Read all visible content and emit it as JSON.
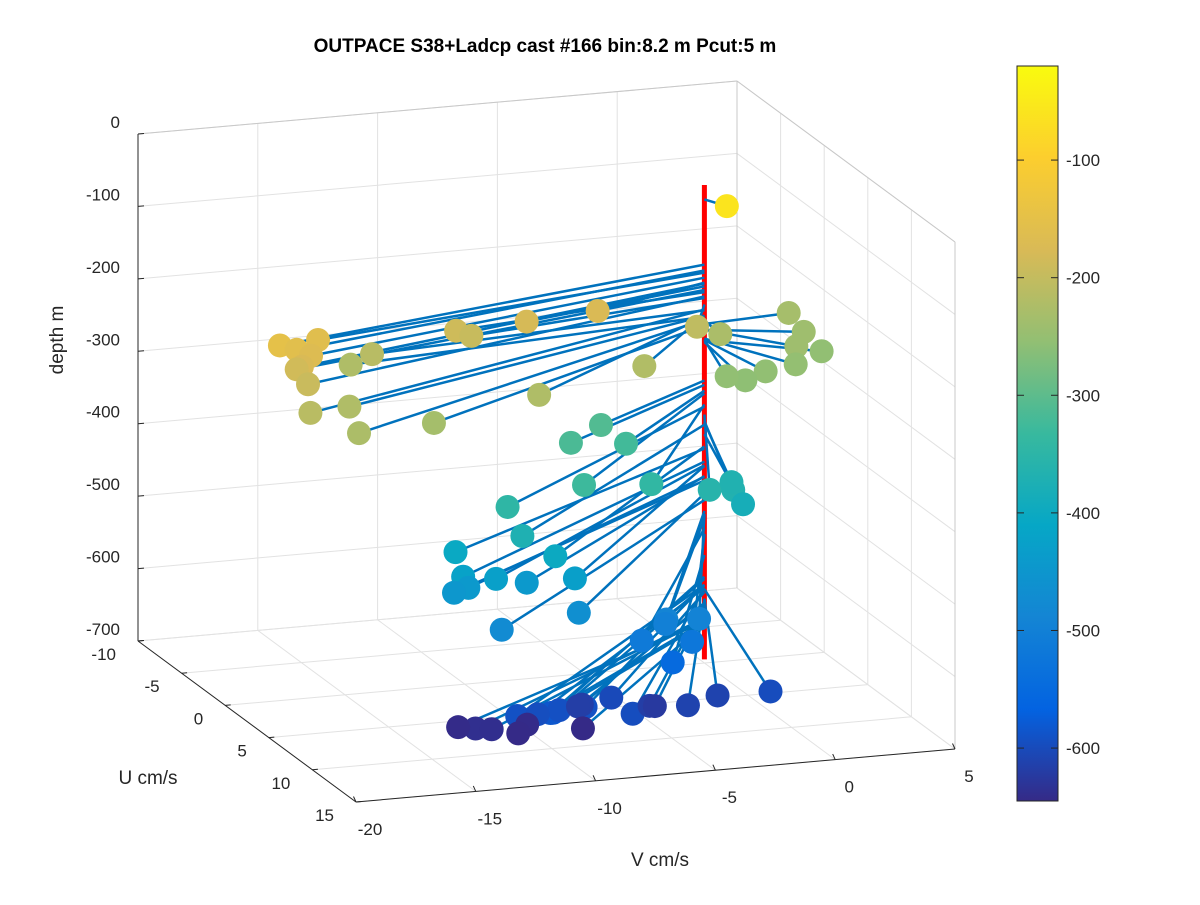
{
  "chart_data": {
    "type": "scatter",
    "projection": "3d",
    "title": "OUTPACE S38+Ladcp cast #166 bin:8.2 m  Pcut:5 m",
    "xlabel": "V cm/s",
    "ylabel": "U cm/s",
    "zlabel": "depth m",
    "xlim": [
      -20,
      5
    ],
    "ylim": [
      -10,
      15
    ],
    "zlim": [
      -700,
      0
    ],
    "xticks": [
      -20,
      -15,
      -10,
      -5,
      0,
      5
    ],
    "yticks": [
      -10,
      -5,
      0,
      5,
      10,
      15
    ],
    "zticks": [
      0,
      -100,
      -200,
      -300,
      -400,
      -500,
      -600,
      -700
    ],
    "xtick_labels": [
      "-20",
      "-15",
      "-10",
      "-5",
      "0",
      "5"
    ],
    "ytick_labels": [
      "-10",
      "-5",
      "0",
      "5",
      "10",
      "15"
    ],
    "ztick_labels": [
      "0",
      "-100",
      "-200",
      "-300",
      "-400",
      "-500",
      "-600",
      "-700"
    ],
    "grid": true,
    "colormap": "parula",
    "colorbar": {
      "ticks": [
        -100,
        -200,
        -300,
        -400,
        -500,
        -600
      ],
      "tick_labels": [
        "-100",
        "-200",
        "-300",
        "-400",
        "-500",
        "-600"
      ],
      "range": [
        -645,
        -20
      ]
    },
    "reference_line": {
      "v": 0,
      "u": 0,
      "z_top": -40,
      "z_bottom": -695,
      "color": "#ff0000"
    },
    "stick_color": "#0072bd",
    "points_v_u_depth": [
      [
        0.5,
        1.2,
        -60
      ],
      [
        -11.2,
        2.3,
        -188
      ],
      [
        -5.4,
        2.6,
        -175
      ],
      [
        -14.6,
        2.0,
        -213
      ],
      [
        -8.4,
        2.7,
        -180
      ],
      [
        -10.6,
        2.4,
        -196
      ],
      [
        -15.6,
        2.3,
        -222
      ],
      [
        -17.8,
        4.6,
        -161
      ],
      [
        -19.9,
        6.0,
        -150
      ],
      [
        -19.2,
        6.0,
        -158
      ],
      [
        -18.6,
        6.0,
        -168
      ],
      [
        -19.2,
        6.6,
        -176
      ],
      [
        -19.2,
        6.0,
        -185
      ],
      [
        -19.2,
        7.3,
        -194
      ],
      [
        -19.9,
        9.5,
        -212
      ],
      [
        -18.6,
        11.5,
        -226
      ],
      [
        -17.8,
        8.2,
        -221
      ],
      [
        -15.0,
        10.2,
        -234
      ],
      [
        -10.1,
        8.8,
        -222
      ],
      [
        -4.8,
        6.3,
        -220
      ],
      [
        -1.4,
        3.0,
        -205
      ],
      [
        -0.1,
        2.1,
        -227
      ],
      [
        3.7,
        -0.5,
        -232
      ],
      [
        2.6,
        3.4,
        -240
      ],
      [
        3.6,
        1.5,
        -240
      ],
      [
        2.1,
        4.7,
        -252
      ],
      [
        0.7,
        5.1,
        -254
      ],
      [
        3.8,
        3.0,
        -254
      ],
      [
        -0.4,
        5.8,
        -257
      ],
      [
        -1.0,
        5.3,
        -254
      ],
      [
        -6.1,
        4.9,
        -310
      ],
      [
        -7.9,
        6.4,
        -316
      ],
      [
        -5.6,
        6.4,
        -324
      ],
      [
        -6.0,
        10.4,
        -343
      ],
      [
        -9.1,
        11.2,
        -328
      ],
      [
        -12.4,
        11.5,
        -346
      ],
      [
        -12.4,
        13.2,
        -371
      ],
      [
        -3.6,
        10.5,
        -357
      ],
      [
        -2.4,
        9.9,
        -366
      ],
      [
        -2.0,
        8.6,
        -368
      ],
      [
        -2.1,
        10.2,
        -384
      ],
      [
        -11.1,
        13.4,
        -401
      ],
      [
        -14.5,
        11.3,
        -404
      ],
      [
        -14.8,
        13.0,
        -422
      ],
      [
        -13.5,
        13.2,
        -427
      ],
      [
        -10.5,
        14.0,
        -428
      ],
      [
        -12.0,
        12.6,
        -442
      ],
      [
        -14.4,
        12.5,
        -443
      ],
      [
        -15.0,
        12.5,
        -448
      ],
      [
        -14.1,
        15.5,
        -475
      ],
      [
        -10.7,
        15.0,
        -466
      ],
      [
        -5.5,
        14.5,
        -494
      ],
      [
        -6.9,
        14.6,
        -490
      ],
      [
        -6.8,
        14.2,
        -500
      ],
      [
        -8.0,
        14.8,
        -514
      ],
      [
        -5.9,
        14.8,
        -522
      ],
      [
        -6.6,
        14.5,
        -551
      ],
      [
        -12.5,
        17.0,
        -581
      ],
      [
        -12.5,
        16.7,
        -584
      ],
      [
        -13.6,
        15.9,
        -592
      ],
      [
        -11.7,
        15.5,
        -593
      ],
      [
        -12.6,
        15.5,
        -596
      ],
      [
        -9.0,
        16.5,
        -597
      ],
      [
        -10.6,
        15.5,
        -592
      ],
      [
        -8.8,
        13.5,
        -602
      ],
      [
        -2.7,
        15.0,
        -598
      ],
      [
        -6.0,
        14.6,
        -611
      ],
      [
        -4.4,
        13.6,
        -611
      ],
      [
        -7.2,
        13.5,
        -618
      ],
      [
        -9.7,
        12.6,
        -617
      ],
      [
        -9.9,
        12.7,
        -618
      ],
      [
        -6.8,
        13.0,
        -624
      ],
      [
        -14.1,
        12.5,
        -638
      ],
      [
        -14.5,
        11.6,
        -643
      ],
      [
        -13.5,
        12.7,
        -639
      ],
      [
        -11.8,
        12.1,
        -643
      ],
      [
        -9.8,
        13.0,
        -646
      ],
      [
        -12.5,
        13.0,
        -645
      ]
    ]
  }
}
